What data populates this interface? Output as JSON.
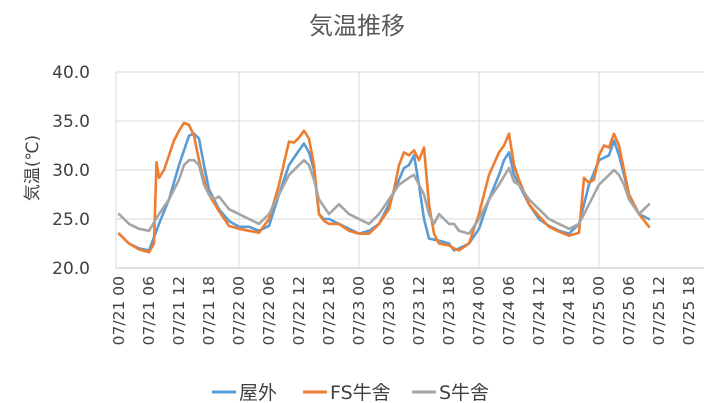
{
  "chart_data": {
    "type": "line",
    "title": "気温推移",
    "ylabel": "気温(℃)",
    "xlabel": "",
    "ylim": [
      20,
      40
    ],
    "yticks": [
      "20.0",
      "25.0",
      "30.0",
      "35.0",
      "40.0"
    ],
    "grid": "both",
    "legend": "bottom",
    "x_hours": [
      0,
      114
    ],
    "x_ticks": [
      {
        "h": 0,
        "label": "07/21 00"
      },
      {
        "h": 6,
        "label": "07/21 06"
      },
      {
        "h": 12,
        "label": "07/21 12"
      },
      {
        "h": 18,
        "label": "07/21 18"
      },
      {
        "h": 24,
        "label": "07/22 00"
      },
      {
        "h": 30,
        "label": "07/22 06"
      },
      {
        "h": 36,
        "label": "07/22 12"
      },
      {
        "h": 42,
        "label": "07/22 18"
      },
      {
        "h": 48,
        "label": "07/23 00"
      },
      {
        "h": 54,
        "label": "07/23 06"
      },
      {
        "h": 60,
        "label": "07/23 12"
      },
      {
        "h": 66,
        "label": "07/23 18"
      },
      {
        "h": 72,
        "label": "07/24 00"
      },
      {
        "h": 78,
        "label": "07/24 06"
      },
      {
        "h": 84,
        "label": "07/24 12"
      },
      {
        "h": 90,
        "label": "07/24 18"
      },
      {
        "h": 96,
        "label": "07/25 00"
      },
      {
        "h": 102,
        "label": "07/25 06"
      },
      {
        "h": 108,
        "label": "07/25 12"
      },
      {
        "h": 114,
        "label": "07/25 18"
      }
    ],
    "series": [
      {
        "name": "屋外",
        "color": "#5B9BD5",
        "points": [
          [
            0,
            23.5
          ],
          [
            2,
            22.5
          ],
          [
            4,
            22.0
          ],
          [
            6,
            21.8
          ],
          [
            8,
            24.5
          ],
          [
            10,
            27.0
          ],
          [
            12,
            30.5
          ],
          [
            13,
            32.0
          ],
          [
            14,
            33.5
          ],
          [
            15,
            33.7
          ],
          [
            16,
            33.2
          ],
          [
            17,
            30.5
          ],
          [
            18,
            28.0
          ],
          [
            20,
            26.0
          ],
          [
            22,
            24.8
          ],
          [
            24,
            24.2
          ],
          [
            26,
            24.2
          ],
          [
            28,
            23.8
          ],
          [
            30,
            24.3
          ],
          [
            32,
            27.5
          ],
          [
            34,
            30.5
          ],
          [
            36,
            32.0
          ],
          [
            37,
            32.7
          ],
          [
            38,
            31.8
          ],
          [
            39,
            30.0
          ],
          [
            40,
            25.5
          ],
          [
            41,
            25.0
          ],
          [
            42,
            25.0
          ],
          [
            44,
            24.5
          ],
          [
            46,
            24.0
          ],
          [
            48,
            23.5
          ],
          [
            50,
            23.8
          ],
          [
            52,
            24.5
          ],
          [
            54,
            26.5
          ],
          [
            56,
            29.0
          ],
          [
            57,
            30.2
          ],
          [
            58,
            30.5
          ],
          [
            59,
            31.5
          ],
          [
            60,
            28.5
          ],
          [
            61,
            25.0
          ],
          [
            62,
            23.0
          ],
          [
            64,
            22.8
          ],
          [
            66,
            22.5
          ],
          [
            67,
            21.8
          ],
          [
            68,
            22.0
          ],
          [
            70,
            22.5
          ],
          [
            72,
            24.0
          ],
          [
            74,
            27.0
          ],
          [
            76,
            29.5
          ],
          [
            77,
            31.0
          ],
          [
            78,
            31.8
          ],
          [
            79,
            29.5
          ],
          [
            80,
            28.5
          ],
          [
            82,
            26.5
          ],
          [
            84,
            25.0
          ],
          [
            86,
            24.3
          ],
          [
            88,
            23.8
          ],
          [
            90,
            23.5
          ],
          [
            92,
            24.5
          ],
          [
            94,
            28.5
          ],
          [
            96,
            31.0
          ],
          [
            98,
            31.5
          ],
          [
            99,
            33.0
          ],
          [
            100,
            31.5
          ],
          [
            101,
            29.5
          ],
          [
            102,
            27.5
          ],
          [
            104,
            25.5
          ],
          [
            106,
            25.0
          ]
        ]
      },
      {
        "name": "FS牛舎",
        "color": "#ED7D31",
        "points": [
          [
            0,
            23.5
          ],
          [
            2,
            22.5
          ],
          [
            4,
            21.9
          ],
          [
            6,
            21.6
          ],
          [
            7,
            22.5
          ],
          [
            7.5,
            30.8
          ],
          [
            8,
            29.2
          ],
          [
            9,
            30.0
          ],
          [
            10,
            31.5
          ],
          [
            11,
            33.0
          ],
          [
            12,
            34.0
          ],
          [
            13,
            34.8
          ],
          [
            14,
            34.6
          ],
          [
            15,
            33.5
          ],
          [
            16,
            31.0
          ],
          [
            17,
            29.0
          ],
          [
            18,
            27.5
          ],
          [
            20,
            25.8
          ],
          [
            22,
            24.3
          ],
          [
            24,
            24.0
          ],
          [
            26,
            23.8
          ],
          [
            28,
            23.6
          ],
          [
            30,
            25.0
          ],
          [
            32,
            28.5
          ],
          [
            34,
            32.9
          ],
          [
            35,
            32.8
          ],
          [
            36,
            33.3
          ],
          [
            37,
            34.0
          ],
          [
            38,
            33.2
          ],
          [
            39,
            30.5
          ],
          [
            40,
            25.5
          ],
          [
            41,
            24.8
          ],
          [
            42,
            24.5
          ],
          [
            44,
            24.5
          ],
          [
            46,
            23.8
          ],
          [
            48,
            23.5
          ],
          [
            50,
            23.5
          ],
          [
            52,
            24.5
          ],
          [
            54,
            26.0
          ],
          [
            55,
            28.0
          ],
          [
            56,
            30.5
          ],
          [
            57,
            31.8
          ],
          [
            58,
            31.5
          ],
          [
            59,
            32.0
          ],
          [
            60,
            31.0
          ],
          [
            61,
            32.3
          ],
          [
            62,
            26.5
          ],
          [
            63,
            23.5
          ],
          [
            64,
            22.5
          ],
          [
            66,
            22.3
          ],
          [
            67,
            22.0
          ],
          [
            68,
            21.8
          ],
          [
            70,
            22.5
          ],
          [
            72,
            25.5
          ],
          [
            74,
            29.5
          ],
          [
            76,
            31.8
          ],
          [
            77,
            32.5
          ],
          [
            78,
            33.7
          ],
          [
            79,
            30.5
          ],
          [
            80,
            29.0
          ],
          [
            82,
            26.5
          ],
          [
            84,
            25.3
          ],
          [
            86,
            24.2
          ],
          [
            88,
            23.7
          ],
          [
            90,
            23.3
          ],
          [
            92,
            23.6
          ],
          [
            93,
            29.2
          ],
          [
            94,
            28.7
          ],
          [
            95,
            29.0
          ],
          [
            96,
            31.5
          ],
          [
            97,
            32.5
          ],
          [
            98,
            32.3
          ],
          [
            99,
            33.7
          ],
          [
            100,
            32.5
          ],
          [
            101,
            30.0
          ],
          [
            102,
            27.5
          ],
          [
            104,
            25.5
          ],
          [
            106,
            24.2
          ]
        ]
      },
      {
        "name": "S牛舎",
        "color": "#A5A5A5",
        "points": [
          [
            0,
            25.5
          ],
          [
            2,
            24.5
          ],
          [
            4,
            24.0
          ],
          [
            6,
            23.8
          ],
          [
            8,
            25.5
          ],
          [
            10,
            27.0
          ],
          [
            12,
            29.0
          ],
          [
            13,
            30.5
          ],
          [
            14,
            31.0
          ],
          [
            15,
            31.0
          ],
          [
            16,
            30.5
          ],
          [
            17,
            28.5
          ],
          [
            18,
            27.5
          ],
          [
            19,
            27.0
          ],
          [
            20,
            27.3
          ],
          [
            22,
            26.0
          ],
          [
            24,
            25.5
          ],
          [
            26,
            25.0
          ],
          [
            28,
            24.5
          ],
          [
            30,
            25.5
          ],
          [
            32,
            27.5
          ],
          [
            34,
            29.5
          ],
          [
            36,
            30.5
          ],
          [
            37,
            31.0
          ],
          [
            38,
            30.5
          ],
          [
            39,
            29.0
          ],
          [
            40,
            27.0
          ],
          [
            42,
            25.5
          ],
          [
            44,
            26.5
          ],
          [
            46,
            25.5
          ],
          [
            48,
            25.0
          ],
          [
            50,
            24.5
          ],
          [
            52,
            25.5
          ],
          [
            54,
            27.0
          ],
          [
            56,
            28.5
          ],
          [
            58,
            29.2
          ],
          [
            59,
            29.5
          ],
          [
            60,
            28.5
          ],
          [
            61,
            27.5
          ],
          [
            62,
            25.5
          ],
          [
            63,
            24.5
          ],
          [
            64,
            25.5
          ],
          [
            66,
            24.5
          ],
          [
            67,
            24.5
          ],
          [
            68,
            23.8
          ],
          [
            70,
            23.5
          ],
          [
            72,
            25.0
          ],
          [
            74,
            27.0
          ],
          [
            76,
            28.5
          ],
          [
            78,
            30.2
          ],
          [
            79,
            28.8
          ],
          [
            80,
            28.5
          ],
          [
            82,
            27.0
          ],
          [
            84,
            26.0
          ],
          [
            86,
            25.0
          ],
          [
            88,
            24.5
          ],
          [
            90,
            24.0
          ],
          [
            92,
            24.5
          ],
          [
            94,
            26.5
          ],
          [
            96,
            28.5
          ],
          [
            98,
            29.5
          ],
          [
            99,
            30.0
          ],
          [
            100,
            29.5
          ],
          [
            101,
            28.5
          ],
          [
            102,
            27.0
          ],
          [
            104,
            25.5
          ],
          [
            106,
            26.5
          ]
        ]
      }
    ]
  }
}
